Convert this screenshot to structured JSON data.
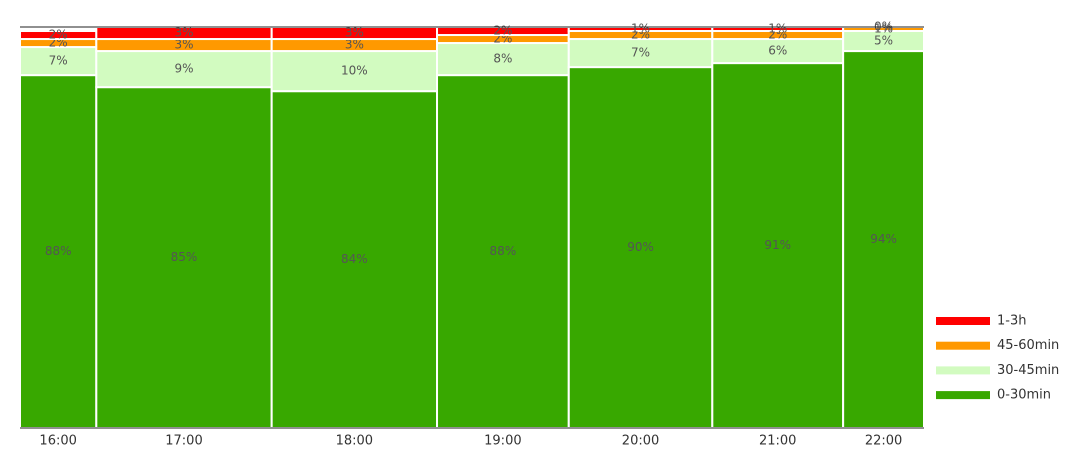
{
  "chart_data": {
    "type": "mosaic",
    "categories": [
      "16:00",
      "17:00",
      "18:00",
      "19:00",
      "20:00",
      "21:00",
      "22:00"
    ],
    "widths": [
      8.4,
      19.3,
      18.2,
      14.5,
      15.8,
      14.4,
      8.9
    ],
    "ylim": [
      0,
      100
    ],
    "series": [
      {
        "name": "0-30min",
        "color": "#38a800",
        "values": [
          88,
          85,
          84,
          88,
          90,
          91,
          94
        ],
        "value_labels": [
          "88%",
          "85%",
          "84%",
          "88%",
          "90%",
          "91%",
          "94%"
        ]
      },
      {
        "name": "30-45min",
        "color": "#d2fbc0",
        "values": [
          7,
          9,
          10,
          8,
          7,
          6,
          5
        ],
        "value_labels": [
          "7%",
          "9%",
          "10%",
          "8%",
          "7%",
          "6%",
          "5%"
        ]
      },
      {
        "name": "45-60min",
        "color": "#ff9900",
        "values": [
          2,
          3,
          3,
          2,
          2,
          2,
          1
        ],
        "value_labels": [
          "2%",
          "3%",
          "3%",
          "2%",
          "2%",
          "2%",
          "1%"
        ]
      },
      {
        "name": "1-3h",
        "color": "#ff0000",
        "values": [
          2,
          3,
          3,
          2,
          1,
          1,
          0
        ],
        "value_labels": [
          "2%",
          "3%",
          "3%",
          "2%",
          "1%",
          "1%",
          "0%"
        ]
      }
    ]
  }
}
